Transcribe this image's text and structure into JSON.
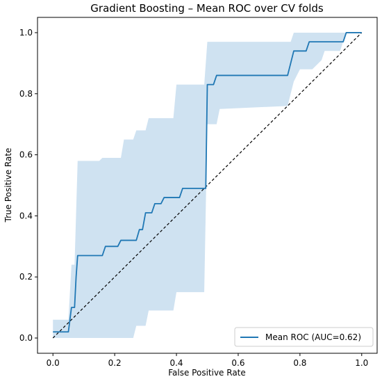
{
  "chart_data": {
    "type": "line",
    "title": "Gradient Boosting – Mean ROC over CV folds",
    "xlabel": "False Positive Rate",
    "ylabel": "True Positive Rate",
    "xlim": [
      -0.05,
      1.05
    ],
    "ylim": [
      -0.05,
      1.05
    ],
    "xticks": [
      0.0,
      0.2,
      0.4,
      0.6,
      0.8,
      1.0
    ],
    "yticks": [
      0.0,
      0.2,
      0.4,
      0.6,
      0.8,
      1.0
    ],
    "xtick_labels": [
      "0.0",
      "0.2",
      "0.4",
      "0.6",
      "0.8",
      "1.0"
    ],
    "ytick_labels": [
      "0.0",
      "0.2",
      "0.4",
      "0.6",
      "0.8",
      "1.0"
    ],
    "grid": false,
    "legend_position": "lower-right",
    "colors": {
      "mean_line": "#1f77b4",
      "band_fill": "#cfe2f1",
      "diagonal": "#000000"
    },
    "series": [
      {
        "name": "Mean ROC (AUC=0.62)",
        "style": "solid",
        "x": [
          0.0,
          0.05,
          0.06,
          0.07,
          0.075,
          0.08,
          0.16,
          0.17,
          0.21,
          0.22,
          0.27,
          0.28,
          0.29,
          0.3,
          0.32,
          0.33,
          0.35,
          0.36,
          0.38,
          0.39,
          0.41,
          0.42,
          0.495,
          0.5,
          0.52,
          0.53,
          0.76,
          0.77,
          0.78,
          0.82,
          0.83,
          0.94,
          0.95,
          1.0
        ],
        "y": [
          0.02,
          0.02,
          0.1,
          0.1,
          0.2,
          0.27,
          0.27,
          0.3,
          0.3,
          0.32,
          0.32,
          0.355,
          0.355,
          0.41,
          0.41,
          0.44,
          0.44,
          0.46,
          0.46,
          0.46,
          0.46,
          0.49,
          0.49,
          0.83,
          0.83,
          0.86,
          0.86,
          0.9,
          0.94,
          0.94,
          0.97,
          0.97,
          1.0,
          1.0
        ]
      }
    ],
    "band": {
      "x": [
        0.0,
        0.05,
        0.06,
        0.07,
        0.08,
        0.15,
        0.16,
        0.22,
        0.23,
        0.26,
        0.27,
        0.3,
        0.31,
        0.39,
        0.4,
        0.49,
        0.5,
        0.53,
        0.54,
        0.76,
        0.77,
        0.78,
        0.8,
        0.84,
        0.87,
        0.88,
        0.93,
        0.95,
        1.0
      ],
      "upper": [
        0.06,
        0.06,
        0.24,
        0.24,
        0.58,
        0.58,
        0.59,
        0.59,
        0.65,
        0.65,
        0.68,
        0.68,
        0.72,
        0.72,
        0.83,
        0.83,
        0.97,
        0.97,
        0.97,
        0.97,
        0.97,
        1.0,
        1.0,
        1.0,
        1.0,
        1.0,
        1.0,
        1.0,
        1.0
      ],
      "lower": [
        0.0,
        0.0,
        0.0,
        0.0,
        0.0,
        0.0,
        0.0,
        0.0,
        0.0,
        0.0,
        0.04,
        0.04,
        0.09,
        0.09,
        0.15,
        0.15,
        0.7,
        0.7,
        0.75,
        0.76,
        0.8,
        0.84,
        0.88,
        0.88,
        0.91,
        0.94,
        0.94,
        1.0,
        1.0
      ]
    },
    "diagonal": {
      "x": [
        0.0,
        1.0
      ],
      "y": [
        0.0,
        1.0
      ],
      "style": "dashed"
    }
  }
}
